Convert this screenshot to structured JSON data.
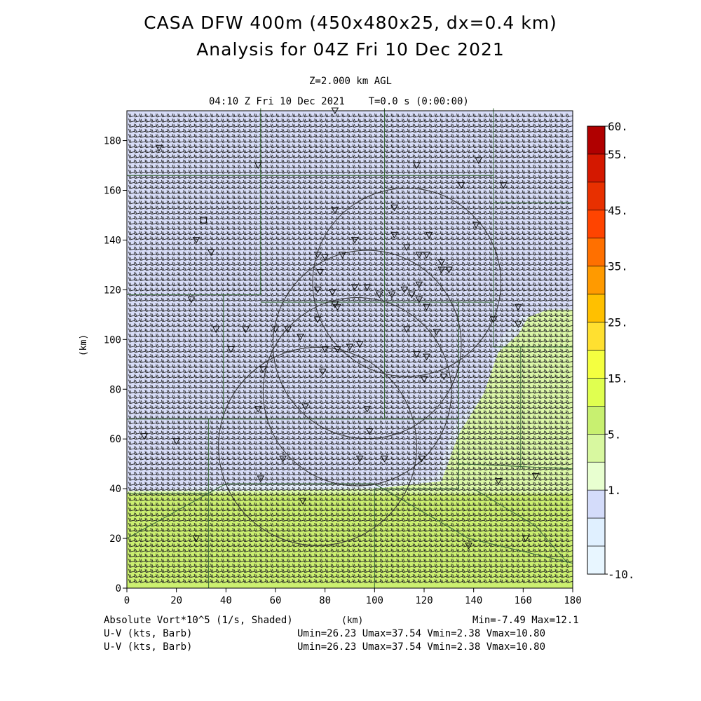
{
  "titles": {
    "line1": "CASA DFW 400m (450x480x25, dx=0.4 km)",
    "line2": "Analysis for 04Z Fri 10 Dec 2021",
    "level": "Z=2.000 km AGL",
    "time": "04:10 Z Fri 10 Dec 2021    T=0.0 s (0:00:00)"
  },
  "footer": {
    "field1": "Absolute Vort*10^5 (1/s, Shaded)",
    "field2": "U-V (kts, Barb)",
    "field3": "U-V (kts, Barb)",
    "minmax1": "Min=-7.49 Max=12.1",
    "stats2": "Umin=26.23 Umax=37.54 Vmin=2.38 Vmax=10.80",
    "stats3": "Umin=26.23 Umax=37.54 Vmin=2.38 Vmax=10.80"
  },
  "chart_data": {
    "type": "heatmap",
    "title": "CASA DFW 400m (450x480x25, dx=0.4 km) Analysis for 04Z Fri 10 Dec 2021",
    "xlabel": "(km)",
    "ylabel": "(km)",
    "xlim": [
      0,
      180
    ],
    "ylim": [
      0,
      192
    ],
    "xticks": [
      "0",
      "20",
      "40",
      "60",
      "80",
      "100",
      "120",
      "140",
      "160",
      "180"
    ],
    "yticks": [
      "0",
      "20",
      "40",
      "60",
      "80",
      "100",
      "120",
      "140",
      "160",
      "180"
    ],
    "colorbar": {
      "labels": [
        "60.",
        "55.",
        "45.",
        "35.",
        "25.",
        "15.",
        "5.",
        "1.",
        "-10."
      ],
      "colors": [
        "#b00000",
        "#d41800",
        "#e83000",
        "#ff4400",
        "#ff7000",
        "#ff9a00",
        "#ffc000",
        "#ffe030",
        "#f4ff40",
        "#e0ff50",
        "#c8f070",
        "#d8f8a0",
        "#e8ffd0",
        "#d4dcfa",
        "#e0f0ff",
        "#e8f6ff"
      ]
    },
    "field": "Absolute Vort*10^5 (1/s)",
    "min": -7.49,
    "max": 12.1,
    "wind": {
      "u_min": 26.23,
      "u_max": 37.54,
      "v_min": 2.38,
      "v_max": 10.8,
      "units": "kts"
    },
    "radar_rings": [
      {
        "center_x": 77,
        "center_y": 57,
        "radius": 40
      },
      {
        "center_x": 93,
        "center_y": 79,
        "radius": 38
      },
      {
        "center_x": 97,
        "center_y": 98,
        "radius": 38
      },
      {
        "center_x": 113,
        "center_y": 123,
        "radius": 38
      }
    ],
    "regions": [
      {
        "name": "blue",
        "level": 1
      },
      {
        "name": "green-south",
        "level": 8
      },
      {
        "name": "green-east",
        "level": 5
      }
    ],
    "grid": false,
    "legend": "right"
  }
}
